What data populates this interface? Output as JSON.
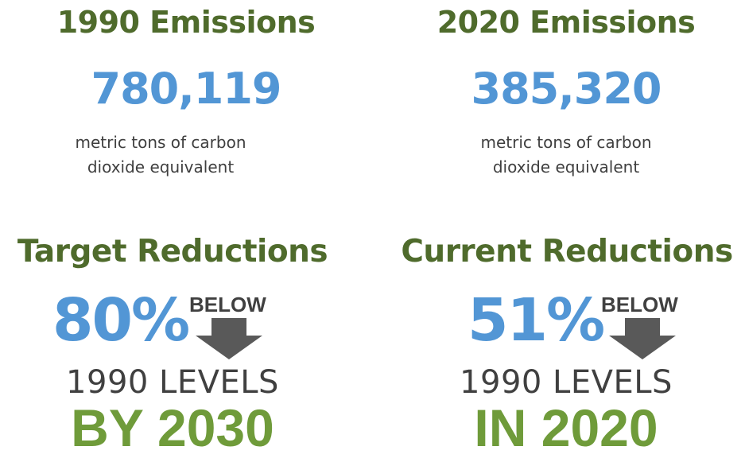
{
  "emissions_1990": {
    "heading": "1990 Emissions",
    "value": "780,119",
    "unit_line1": "metric tons of carbon",
    "unit_line2": "dioxide equivalent"
  },
  "emissions_2020": {
    "heading": "2020 Emissions",
    "value": "385,320",
    "unit_line1": "metric tons of carbon",
    "unit_line2": "dioxide equivalent"
  },
  "target_reductions": {
    "heading": "Target Reductions",
    "percent": "80%",
    "below_label": "BELOW",
    "levels": "1990 LEVELS",
    "deadline": "BY 2030"
  },
  "current_reductions": {
    "heading": "Current Reductions",
    "percent": "51%",
    "below_label": "BELOW",
    "levels": "1990 LEVELS",
    "deadline": "IN 2020"
  },
  "colors": {
    "heading_green": "#4f6b2c",
    "number_blue": "#5296d5",
    "deadline_green": "#6f9b3a",
    "text_gray": "#404040",
    "arrow_gray": "#595959"
  },
  "icons": [
    "down-arrow-icon"
  ]
}
